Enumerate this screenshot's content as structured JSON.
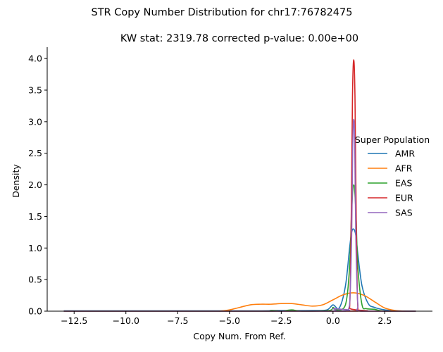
{
  "chart_data": {
    "type": "line",
    "title": "STR Copy Number Distribution for chr17:76782475",
    "subtitle": "KW stat: 2319.78    corrected p-value: 0.00e+00",
    "xlabel": "Copy Num. From Ref.",
    "ylabel": "Density",
    "xlim": [
      -13.8,
      4.8
    ],
    "ylim": [
      0,
      4.18
    ],
    "xticks": [
      -12.5,
      -10.0,
      -7.5,
      -5.0,
      -2.5,
      0.0,
      2.5
    ],
    "xtick_labels": [
      "−12.5",
      "−10.0",
      "−7.5",
      "−5.0",
      "−2.5",
      "0.0",
      "2.5"
    ],
    "yticks": [
      0.0,
      0.5,
      1.0,
      1.5,
      2.0,
      2.5,
      3.0,
      3.5,
      4.0
    ],
    "ytick_labels": [
      "0.0",
      "0.5",
      "1.0",
      "1.5",
      "2.0",
      "2.5",
      "3.0",
      "3.5",
      "4.0"
    ],
    "grid": false,
    "legend": {
      "title": "Super Population",
      "placement": "right"
    },
    "series": [
      {
        "name": "AMR",
        "color": "#1f77b4",
        "x": [
          -13,
          -4,
          -3,
          -2.5,
          -2,
          -1,
          -0.3,
          0,
          0.3,
          0.6,
          0.8,
          0.9,
          1,
          1.1,
          1.2,
          1.4,
          1.7,
          2,
          2.5,
          3,
          4
        ],
        "y": [
          0.005,
          0.005,
          0.01,
          0.01,
          0.01,
          0.01,
          0.02,
          0.1,
          0.05,
          0.4,
          1.0,
          1.25,
          1.3,
          1.2,
          0.9,
          0.4,
          0.12,
          0.06,
          0.02,
          0.005,
          0.0
        ]
      },
      {
        "name": "AFR",
        "color": "#ff7f0e",
        "x": [
          -5.5,
          -5,
          -4.5,
          -4,
          -3.5,
          -3,
          -2.5,
          -2,
          -1.5,
          -1,
          -0.5,
          0,
          0.5,
          1,
          1.5,
          2,
          2.5,
          3,
          3.5
        ],
        "y": [
          0.0,
          0.02,
          0.06,
          0.1,
          0.11,
          0.11,
          0.12,
          0.12,
          0.1,
          0.08,
          0.1,
          0.18,
          0.26,
          0.29,
          0.25,
          0.15,
          0.05,
          0.01,
          0.0
        ]
      },
      {
        "name": "EAS",
        "color": "#2ca02c",
        "x": [
          -13,
          -3.5,
          -3,
          -2.5,
          -2,
          -1.5,
          -0.2,
          0,
          0.2,
          0.6,
          0.8,
          0.9,
          1,
          1.1,
          1.2,
          1.4,
          1.6,
          2,
          2.5,
          4
        ],
        "y": [
          0.0,
          0.0,
          0.01,
          0.0,
          0.02,
          0.0,
          0.01,
          0.06,
          0.02,
          0.1,
          0.7,
          1.6,
          2.0,
          1.6,
          0.7,
          0.1,
          0.04,
          0.03,
          0.0,
          0.0
        ]
      },
      {
        "name": "EUR",
        "color": "#d62728",
        "x": [
          -13,
          0.6,
          0.8,
          0.88,
          0.94,
          1,
          1.06,
          1.12,
          1.2,
          1.4,
          4
        ],
        "y": [
          0.0,
          0.0,
          0.05,
          1.5,
          3.4,
          3.98,
          3.4,
          1.5,
          0.05,
          0.0,
          0.0
        ]
      },
      {
        "name": "SAS",
        "color": "#9467bd",
        "x": [
          -13,
          -0.2,
          0,
          0.2,
          0.6,
          0.8,
          0.9,
          0.95,
          1,
          1.05,
          1.1,
          1.2,
          1.4,
          4
        ],
        "y": [
          0.0,
          0.0,
          0.04,
          0.0,
          0.0,
          0.1,
          1.2,
          2.6,
          3.04,
          2.6,
          1.2,
          0.1,
          0.0,
          0.0
        ]
      }
    ]
  }
}
